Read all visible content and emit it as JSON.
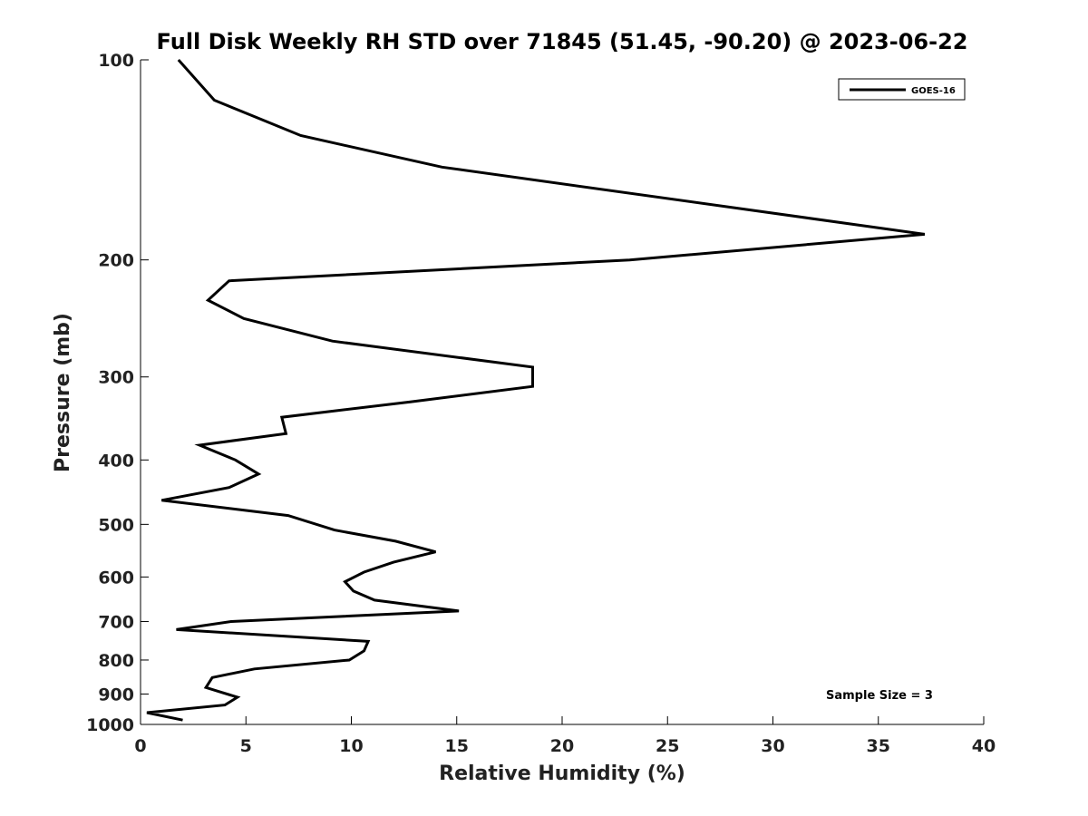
{
  "chart_data": {
    "type": "line",
    "title": "Full Disk Weekly RH STD over 71845 (51.45, -90.20) @ 2023-06-22",
    "xlabel": "Relative Humidity (%)",
    "ylabel": "Pressure (mb)",
    "xlim": [
      0,
      40
    ],
    "ylim": [
      100,
      1000
    ],
    "y_scale": "log",
    "y_reversed": true,
    "xticks": [
      0,
      5,
      10,
      15,
      20,
      25,
      30,
      35,
      40
    ],
    "yticks": [
      100,
      200,
      300,
      400,
      500,
      600,
      700,
      800,
      900,
      1000
    ],
    "grid": false,
    "legend_position": "top-right",
    "annotation": "Sample Size = 3",
    "line_color": "#000000",
    "series": [
      {
        "name": "GOES-16",
        "x": [
          1.8,
          3.5,
          7.6,
          14.3,
          37.2,
          23.2,
          4.2,
          3.2,
          4.9,
          9.1,
          18.6,
          18.6,
          12.8,
          6.7,
          6.9,
          2.8,
          4.5,
          5.6,
          4.2,
          1.0,
          7.0,
          9.2,
          12.1,
          14.0,
          12.0,
          10.6,
          9.7,
          10.1,
          11.1,
          15.1,
          4.3,
          1.7,
          10.8,
          10.6,
          9.9,
          5.4,
          3.4,
          3.1,
          4.6,
          4.0,
          0.3,
          2.0
        ],
        "y": [
          100,
          115,
          130,
          145,
          183,
          200,
          215,
          230,
          245,
          265,
          290,
          310,
          327,
          345,
          365,
          380,
          400,
          420,
          440,
          460,
          485,
          510,
          530,
          550,
          570,
          590,
          610,
          630,
          650,
          675,
          700,
          720,
          750,
          775,
          800,
          825,
          850,
          880,
          910,
          935,
          960,
          985
        ]
      }
    ]
  }
}
